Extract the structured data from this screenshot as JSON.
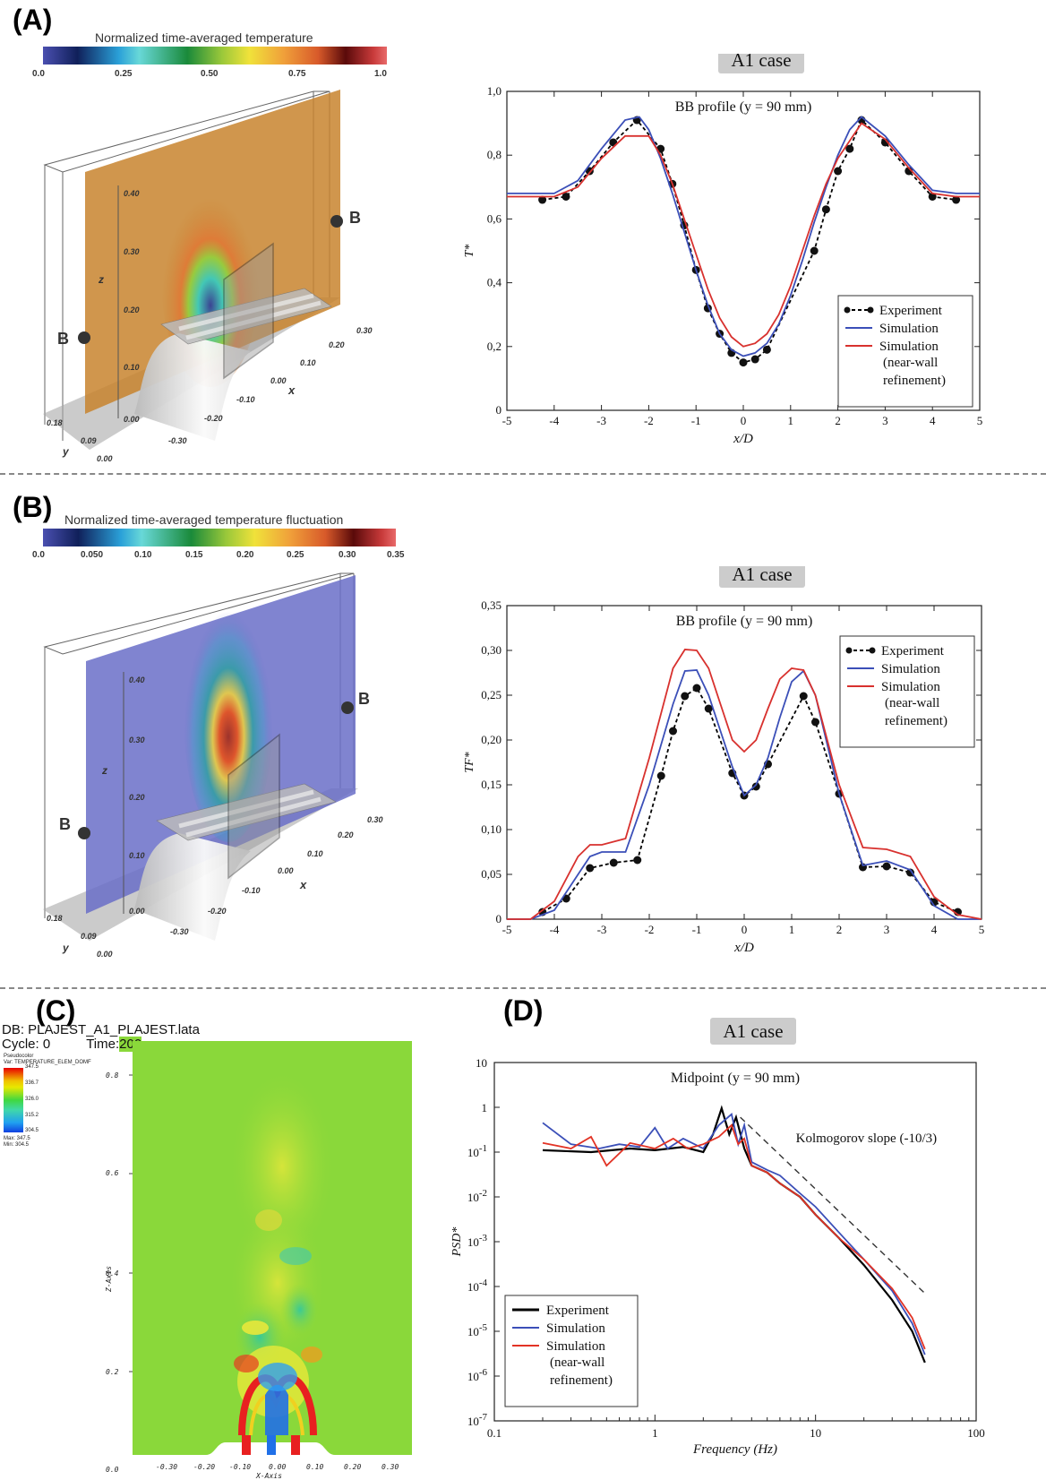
{
  "panels": {
    "A": {
      "label": "(A)"
    },
    "B": {
      "label": "(B)"
    },
    "C": {
      "label": "(C)"
    },
    "D": {
      "label": "(D)"
    }
  },
  "render3d": {
    "A": {
      "colorbar_title": "Normalized time-averaged temperature",
      "colorbar_ticks": [
        "0.0",
        "0.25",
        "0.50",
        "0.75",
        "1.0"
      ],
      "z_ticks": [
        "0.40",
        "0.30",
        "0.20",
        "0.10",
        "0.00"
      ],
      "x_ticks": [
        "0.30",
        "0.20",
        "0.10",
        "0.00",
        "-0.10",
        "-0.20",
        "-0.30"
      ],
      "y_ticks": [
        "0.18",
        "0.09",
        "0.00"
      ],
      "axis_x": "x",
      "axis_y": "y",
      "axis_z": "z",
      "point_label": "B",
      "plane_color": "#c8842e"
    },
    "B": {
      "colorbar_title": "Normalized time-averaged temperature fluctuation",
      "colorbar_ticks": [
        "0.0",
        "0.050",
        "0.10",
        "0.15",
        "0.20",
        "0.25",
        "0.30",
        "0.35"
      ],
      "z_ticks": [
        "0.40",
        "0.30",
        "0.20",
        "0.10",
        "0.00"
      ],
      "x_ticks": [
        "0.30",
        "0.20",
        "0.10",
        "0.00",
        "-0.10",
        "-0.20",
        "-0.30"
      ],
      "y_ticks": [
        "0.18",
        "0.09",
        "0.00"
      ],
      "axis_x": "x",
      "axis_y": "y",
      "axis_z": "z",
      "point_label": "B",
      "plane_color": "#6a6fc8"
    }
  },
  "visit": {
    "db_line": "DB: PLAJEST_A1_PLAJEST.lata",
    "cycle_line": "Cycle: 0",
    "time_label": "Time:",
    "time_value": "200",
    "legend_type": "Pseudocolor",
    "legend_var": "Var: TEMPERATURE_ELEM_DOMF",
    "legend_ticks": [
      "347.5",
      "336.7",
      "326.0",
      "315.2",
      "304.5"
    ],
    "legend_max": "Max: 347.5",
    "legend_min": "Min: 304.5",
    "x_ticks": [
      "-0.30",
      "-0.20",
      "-0.10",
      "0.00",
      "0.10",
      "0.20",
      "0.30"
    ],
    "z_ticks": [
      "0.8",
      "0.6",
      "0.4",
      "0.2",
      "0.0"
    ],
    "x_axis_title": "X-Axis",
    "z_axis_title": "Z-Axis",
    "background_color": "#8ad83a"
  },
  "chart_data": [
    {
      "id": "A",
      "type": "line",
      "badge": "A1 case",
      "subtitle": "BB profile (y = 90 mm)",
      "xlabel": "x/D",
      "ylabel": "T*",
      "xlim": [
        -5,
        5
      ],
      "ylim": [
        0,
        1.0
      ],
      "xticks": [
        "-5",
        "-4",
        "-3",
        "-2",
        "-1",
        "0",
        "1",
        "2",
        "3",
        "4",
        "5"
      ],
      "yticks": [
        "0",
        "0,2",
        "0,4",
        "0,6",
        "0,8",
        "1,0"
      ],
      "legend": [
        "Experiment",
        "Simulation",
        "Simulation",
        "(near-wall",
        "refinement)"
      ],
      "series": [
        {
          "name": "Experiment",
          "color": "#000000",
          "x": [
            -4.25,
            -3.75,
            -3.25,
            -2.75,
            -2.25,
            -1.75,
            -1.5,
            -1.25,
            -1.0,
            -0.75,
            -0.5,
            -0.25,
            0,
            0.25,
            0.5,
            1.5,
            1.75,
            2.0,
            2.25,
            2.5,
            3.0,
            3.5,
            4.0,
            4.5
          ],
          "y": [
            0.66,
            0.67,
            0.75,
            0.84,
            0.91,
            0.82,
            0.71,
            0.58,
            0.44,
            0.32,
            0.24,
            0.18,
            0.15,
            0.16,
            0.19,
            0.5,
            0.63,
            0.75,
            0.82,
            0.91,
            0.84,
            0.75,
            0.67,
            0.66
          ]
        },
        {
          "name": "Simulation",
          "color": "#3b4fb8",
          "x": [
            -5,
            -4,
            -3.5,
            -3,
            -2.5,
            -2.2,
            -2,
            -1.75,
            -1.5,
            -1.25,
            -1,
            -0.75,
            -0.5,
            -0.25,
            0,
            0.25,
            0.5,
            0.75,
            1,
            1.25,
            1.5,
            1.75,
            2,
            2.25,
            2.5,
            3,
            3.5,
            4,
            4.5,
            5
          ],
          "y": [
            0.68,
            0.68,
            0.72,
            0.82,
            0.91,
            0.92,
            0.88,
            0.79,
            0.68,
            0.56,
            0.44,
            0.33,
            0.24,
            0.19,
            0.17,
            0.18,
            0.21,
            0.27,
            0.36,
            0.47,
            0.59,
            0.7,
            0.8,
            0.88,
            0.92,
            0.86,
            0.77,
            0.69,
            0.68,
            0.68
          ]
        },
        {
          "name": "Simulation (near-wall refinement)",
          "color": "#d8312e",
          "x": [
            -5,
            -4,
            -3.5,
            -3,
            -2.5,
            -2,
            -1.75,
            -1.5,
            -1.25,
            -1,
            -0.75,
            -0.5,
            -0.25,
            0,
            0.25,
            0.5,
            0.75,
            1,
            1.25,
            1.5,
            1.75,
            2,
            2.5,
            3,
            3.5,
            4,
            4.5,
            5
          ],
          "y": [
            0.67,
            0.67,
            0.7,
            0.79,
            0.86,
            0.86,
            0.8,
            0.71,
            0.6,
            0.49,
            0.38,
            0.29,
            0.23,
            0.2,
            0.21,
            0.24,
            0.3,
            0.39,
            0.5,
            0.61,
            0.71,
            0.79,
            0.9,
            0.85,
            0.76,
            0.68,
            0.67,
            0.67
          ]
        }
      ]
    },
    {
      "id": "B",
      "type": "line",
      "badge": "A1 case",
      "subtitle": "BB profile (y = 90 mm)",
      "xlabel": "x/D",
      "ylabel": "TF*",
      "xlim": [
        -5,
        5
      ],
      "ylim": [
        0,
        0.35
      ],
      "xticks": [
        "-5",
        "-4",
        "-3",
        "-2",
        "-1",
        "0",
        "1",
        "2",
        "3",
        "4",
        "5"
      ],
      "yticks": [
        "0",
        "0,05",
        "0,10",
        "0,15",
        "0,20",
        "0,25",
        "0,30",
        "0,35"
      ],
      "legend": [
        "Experiment",
        "Simulation",
        "Simulation",
        "(near-wall",
        "refinement)"
      ],
      "series": [
        {
          "name": "Experiment",
          "color": "#000000",
          "x": [
            -4.25,
            -3.75,
            -3.25,
            -2.75,
            -2.25,
            -1.75,
            -1.5,
            -1.25,
            -1.0,
            -0.75,
            -0.25,
            0,
            0.25,
            0.5,
            1.25,
            1.5,
            2.0,
            2.5,
            3.0,
            3.5,
            4.0,
            4.5
          ],
          "y": [
            0.008,
            0.023,
            0.057,
            0.063,
            0.066,
            0.16,
            0.21,
            0.249,
            0.258,
            0.235,
            0.163,
            0.138,
            0.148,
            0.173,
            0.249,
            0.22,
            0.14,
            0.058,
            0.059,
            0.052,
            0.019,
            0.008
          ]
        },
        {
          "name": "Simulation",
          "color": "#3b4fb8",
          "x": [
            -5,
            -4.5,
            -4,
            -3.5,
            -3.25,
            -3,
            -2.5,
            -2,
            -1.5,
            -1.25,
            -1,
            -0.75,
            -0.5,
            -0.25,
            0,
            0.25,
            0.5,
            0.75,
            1,
            1.25,
            1.5,
            2,
            2.5,
            3,
            3.5,
            4,
            4.5,
            5
          ],
          "y": [
            0,
            0,
            0.01,
            0.05,
            0.07,
            0.075,
            0.075,
            0.15,
            0.24,
            0.277,
            0.278,
            0.25,
            0.21,
            0.17,
            0.138,
            0.15,
            0.18,
            0.225,
            0.265,
            0.277,
            0.25,
            0.14,
            0.06,
            0.065,
            0.055,
            0.015,
            0,
            0
          ]
        },
        {
          "name": "Simulation (near-wall refinement)",
          "color": "#d8312e",
          "x": [
            -5,
            -4.5,
            -4,
            -3.5,
            -3.25,
            -3,
            -2.5,
            -2,
            -1.5,
            -1.25,
            -1,
            -0.75,
            -0.5,
            -0.25,
            0,
            0.25,
            0.5,
            0.75,
            1,
            1.25,
            1.5,
            2,
            2.5,
            3,
            3.5,
            4,
            4.5,
            5
          ],
          "y": [
            0,
            0,
            0.02,
            0.07,
            0.083,
            0.083,
            0.09,
            0.18,
            0.28,
            0.301,
            0.3,
            0.28,
            0.24,
            0.2,
            0.187,
            0.2,
            0.235,
            0.268,
            0.28,
            0.278,
            0.25,
            0.15,
            0.08,
            0.078,
            0.07,
            0.025,
            0.005,
            0
          ]
        }
      ]
    },
    {
      "id": "D",
      "type": "line",
      "badge": "A1 case",
      "subtitle": "Midpoint (y = 90 mm)",
      "xlabel": "Frequency (Hz)",
      "ylabel": "PSD*",
      "xscale": "log",
      "yscale": "log",
      "xlim": [
        0.1,
        100
      ],
      "ylim": [
        1e-07,
        10
      ],
      "xticks": [
        "0.1",
        "1",
        "10",
        "100"
      ],
      "yticks": [
        "10",
        "1",
        "10-1",
        "10-2",
        "10-3",
        "10-4",
        "10-5",
        "10-6",
        "10-7"
      ],
      "annotation": "Kolmogorov slope (-10/3)",
      "legend": [
        "Experiment",
        "Simulation",
        "Simulation",
        "(near-wall",
        "refinement)"
      ],
      "kolmogorov": {
        "x": [
          3.4,
          48
        ],
        "y": [
          0.6,
          7e-05
        ]
      },
      "series": [
        {
          "name": "Experiment",
          "color": "#000000",
          "x": [
            0.2,
            0.4,
            0.7,
            1.0,
            1.5,
            2.0,
            2.3,
            2.6,
            2.9,
            3.2,
            3.6,
            4,
            5,
            6,
            8,
            10,
            14,
            20,
            30,
            40,
            48
          ],
          "y": [
            0.11,
            0.1,
            0.12,
            0.11,
            0.13,
            0.1,
            0.25,
            0.95,
            0.25,
            0.6,
            0.12,
            0.05,
            0.035,
            0.02,
            0.01,
            0.004,
            0.0012,
            0.0003,
            5e-05,
            1e-05,
            2e-06
          ]
        },
        {
          "name": "Simulation",
          "color": "#3b4fb8",
          "x": [
            0.2,
            0.3,
            0.45,
            0.6,
            0.8,
            1.0,
            1.2,
            1.5,
            2.0,
            2.5,
            3.0,
            3.3,
            3.6,
            4,
            5,
            6,
            8,
            10,
            14,
            20,
            30,
            40,
            48
          ],
          "y": [
            0.45,
            0.15,
            0.12,
            0.15,
            0.13,
            0.35,
            0.12,
            0.2,
            0.12,
            0.4,
            0.7,
            0.15,
            0.4,
            0.06,
            0.04,
            0.03,
            0.012,
            0.006,
            0.0016,
            0.0004,
            8e-05,
            1.5e-05,
            3e-06
          ]
        },
        {
          "name": "Simulation (near-wall refinement)",
          "color": "#e23325",
          "x": [
            0.2,
            0.3,
            0.4,
            0.5,
            0.7,
            1.0,
            1.3,
            1.6,
            2.0,
            2.5,
            3.0,
            3.3,
            3.6,
            4,
            5,
            6,
            8,
            10,
            14,
            20,
            30,
            40,
            48
          ],
          "y": [
            0.16,
            0.12,
            0.22,
            0.05,
            0.16,
            0.12,
            0.2,
            0.12,
            0.15,
            0.22,
            0.4,
            0.15,
            0.2,
            0.05,
            0.035,
            0.02,
            0.01,
            0.004,
            0.0012,
            0.0004,
            9e-05,
            2e-05,
            4e-06
          ]
        }
      ]
    }
  ]
}
